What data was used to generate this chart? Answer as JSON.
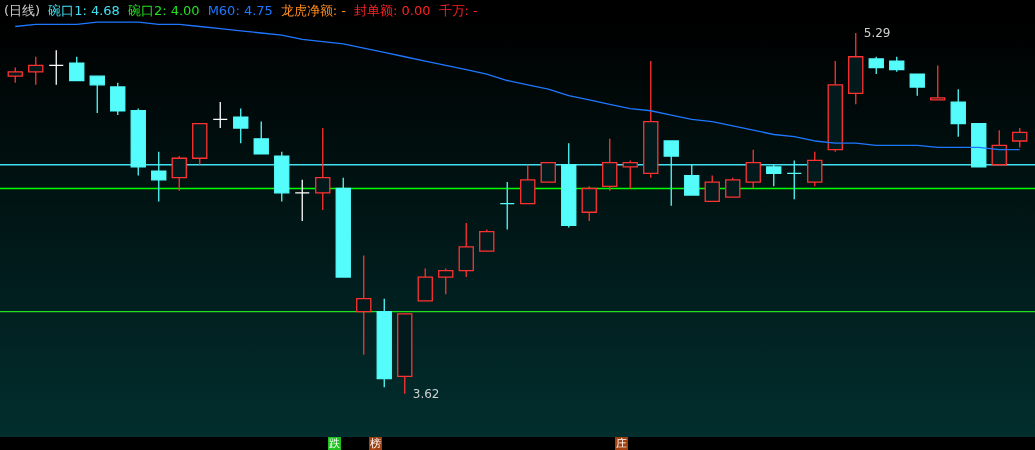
{
  "chart_data": {
    "type": "candlestick",
    "title": "(日线)",
    "categories": [
      null,
      null,
      null,
      null,
      null,
      null,
      null,
      null,
      null,
      null,
      null,
      null,
      null,
      null,
      null,
      null,
      null,
      null,
      null,
      null,
      null,
      null,
      null,
      null,
      null,
      null,
      null,
      null,
      null,
      null,
      null,
      null,
      null,
      null,
      null,
      null,
      null,
      null,
      null,
      null,
      null,
      null,
      null,
      null,
      null,
      null,
      null,
      null,
      null,
      null
    ],
    "ohlc": [
      [
        5.09,
        5.13,
        5.06,
        5.11
      ],
      [
        5.11,
        5.18,
        5.05,
        5.14
      ],
      [
        5.14,
        5.21,
        5.05,
        5.14
      ],
      [
        5.15,
        5.18,
        5.07,
        5.07
      ],
      [
        5.09,
        5.09,
        4.92,
        5.05
      ],
      [
        5.04,
        5.06,
        4.91,
        4.93
      ],
      [
        4.93,
        4.94,
        4.63,
        4.67
      ],
      [
        4.65,
        4.74,
        4.51,
        4.61
      ],
      [
        4.62,
        4.72,
        4.56,
        4.71
      ],
      [
        4.71,
        4.87,
        4.68,
        4.87
      ],
      [
        4.89,
        4.97,
        4.85,
        4.89
      ],
      [
        4.9,
        4.94,
        4.78,
        4.85
      ],
      [
        4.8,
        4.88,
        4.73,
        4.73
      ],
      [
        4.72,
        4.74,
        4.51,
        4.55
      ],
      [
        4.55,
        4.61,
        4.42,
        4.55
      ],
      [
        4.55,
        4.85,
        4.47,
        4.62
      ],
      [
        4.57,
        4.62,
        4.16,
        4.16
      ],
      [
        4.0,
        4.26,
        3.8,
        4.06
      ],
      [
        4.0,
        4.06,
        3.65,
        3.69
      ],
      [
        3.7,
        3.99,
        3.62,
        3.99
      ],
      [
        4.05,
        4.2,
        4.05,
        4.16
      ],
      [
        4.16,
        4.2,
        4.08,
        4.19
      ],
      [
        4.19,
        4.41,
        4.16,
        4.3
      ],
      [
        4.28,
        4.38,
        4.28,
        4.37
      ],
      [
        4.5,
        4.6,
        4.38,
        4.5
      ],
      [
        4.5,
        4.68,
        4.5,
        4.61
      ],
      [
        4.6,
        4.69,
        4.6,
        4.69
      ],
      [
        4.68,
        4.78,
        4.39,
        4.4
      ],
      [
        4.46,
        4.58,
        4.42,
        4.57
      ],
      [
        4.58,
        4.8,
        4.56,
        4.69
      ],
      [
        4.67,
        4.7,
        4.57,
        4.69
      ],
      [
        4.64,
        5.16,
        4.62,
        4.88
      ],
      [
        4.79,
        4.79,
        4.49,
        4.72
      ],
      [
        4.63,
        4.68,
        4.54,
        4.54
      ],
      [
        4.51,
        4.63,
        4.51,
        4.6
      ],
      [
        4.53,
        4.62,
        4.53,
        4.61
      ],
      [
        4.6,
        4.75,
        4.57,
        4.69
      ],
      [
        4.67,
        4.68,
        4.58,
        4.64
      ],
      [
        4.64,
        4.7,
        4.52,
        4.64
      ],
      [
        4.6,
        4.74,
        4.58,
        4.7
      ],
      [
        4.75,
        5.16,
        4.74,
        5.05
      ],
      [
        5.01,
        5.29,
        4.96,
        5.18
      ],
      [
        5.17,
        5.18,
        5.1,
        5.13
      ],
      [
        5.16,
        5.18,
        5.11,
        5.12
      ],
      [
        5.1,
        5.1,
        5.0,
        5.04
      ],
      [
        4.98,
        5.14,
        4.98,
        4.99
      ],
      [
        4.97,
        5.03,
        4.81,
        4.87
      ],
      [
        4.87,
        4.87,
        4.67,
        4.67
      ],
      [
        4.68,
        4.84,
        4.68,
        4.77
      ],
      [
        4.79,
        4.85,
        4.76,
        4.83
      ]
    ],
    "colors": [
      "#ff3232",
      "#ff3232",
      "#ffffff",
      "#54fcfc",
      "#54fcfc",
      "#54fcfc",
      "#54fcfc",
      "#54fcfc",
      "#ff3232",
      "#ff3232",
      "#ffffff",
      "#54fcfc",
      "#54fcfc",
      "#54fcfc",
      "#ffffff",
      "#ff3232",
      "#54fcfc",
      "#ff3232",
      "#54fcfc",
      "#ff3232",
      "#ff3232",
      "#ff3232",
      "#ff3232",
      "#ff3232",
      "#54fcfc",
      "#ff3232",
      "#ff3232",
      "#54fcfc",
      "#ff3232",
      "#ff3232",
      "#ff3232",
      "#ff3232",
      "#54fcfc",
      "#54fcfc",
      "#ff3232",
      "#ff3232",
      "#ff3232",
      "#54fcfc",
      "#54fcfc",
      "#ff3232",
      "#ff3232",
      "#ff3232",
      "#54fcfc",
      "#54fcfc",
      "#54fcfc",
      "#ff3232",
      "#54fcfc",
      "#54fcfc",
      "#ff3232",
      "#ff3232"
    ],
    "series": [
      {
        "name": "M60: 4.75",
        "type": "line",
        "color": "#1e78ff",
        "values": [
          5.32,
          5.33,
          5.33,
          5.33,
          5.34,
          5.34,
          5.34,
          5.33,
          5.33,
          5.32,
          5.31,
          5.3,
          5.29,
          5.28,
          5.26,
          5.25,
          5.24,
          5.22,
          5.2,
          5.18,
          5.16,
          5.14,
          5.12,
          5.1,
          5.07,
          5.05,
          5.03,
          5.0,
          4.98,
          4.96,
          4.94,
          4.93,
          4.91,
          4.89,
          4.88,
          4.86,
          4.84,
          4.82,
          4.81,
          4.79,
          4.78,
          4.78,
          4.77,
          4.77,
          4.77,
          4.76,
          4.76,
          4.76,
          4.75,
          4.75
        ]
      }
    ],
    "ref_lines": [
      {
        "axis": "y",
        "value": 4.68,
        "label": "碗口1: 4.68",
        "color": "#40e0f0"
      },
      {
        "axis": "y",
        "value": 4.0,
        "label": "碗口2: 4.00",
        "color": "#20e020"
      },
      {
        "axis": "y",
        "value": 4.57,
        "color": "#00ff00"
      }
    ],
    "annotations": [
      "龙虎净额: -",
      "封单额: 0.00",
      "千万: -",
      "5.29",
      "3.62",
      "跌",
      "榜",
      "庄"
    ],
    "tick_labels": false
  }
}
